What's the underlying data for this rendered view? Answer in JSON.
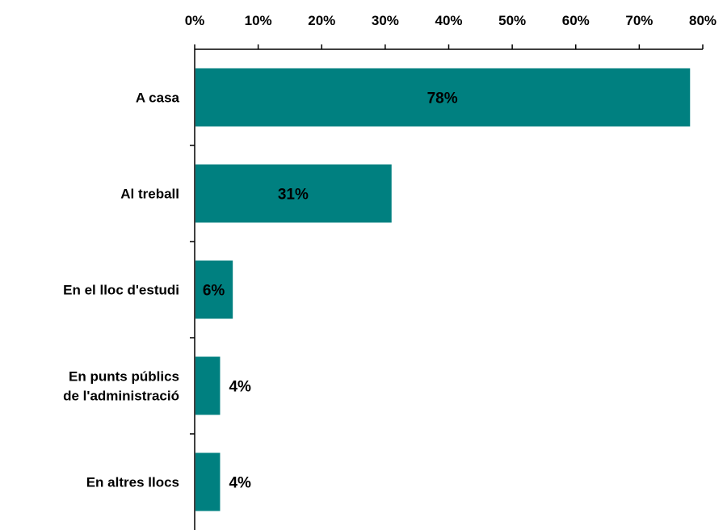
{
  "chart_data": {
    "type": "bar",
    "orientation": "horizontal",
    "categories": [
      "A casa",
      "Al treball",
      "En el lloc d'estudi",
      "En punts públics de l'administració",
      "En altres llocs"
    ],
    "category_label_lines": [
      [
        "A casa"
      ],
      [
        "Al treball"
      ],
      [
        "En el lloc d'estudi"
      ],
      [
        "En punts públics",
        "de l'administració"
      ],
      [
        "En altres llocs"
      ]
    ],
    "values": [
      78,
      31,
      6,
      4,
      4
    ],
    "value_labels": [
      "78%",
      "31%",
      "6%",
      "4%",
      "4%"
    ],
    "value_label_position": [
      "inside",
      "inside",
      "inside",
      "outside",
      "outside"
    ],
    "xlim": [
      0,
      80
    ],
    "x_ticks": [
      0,
      10,
      20,
      30,
      40,
      50,
      60,
      70,
      80
    ],
    "x_tick_labels": [
      "0%",
      "10%",
      "20%",
      "30%",
      "40%",
      "50%",
      "60%",
      "70%",
      "80%"
    ],
    "x_axis_position": "top",
    "title": "",
    "xlabel": "",
    "ylabel": "",
    "grid": false,
    "legend": "none",
    "bar_color": "#008080"
  }
}
